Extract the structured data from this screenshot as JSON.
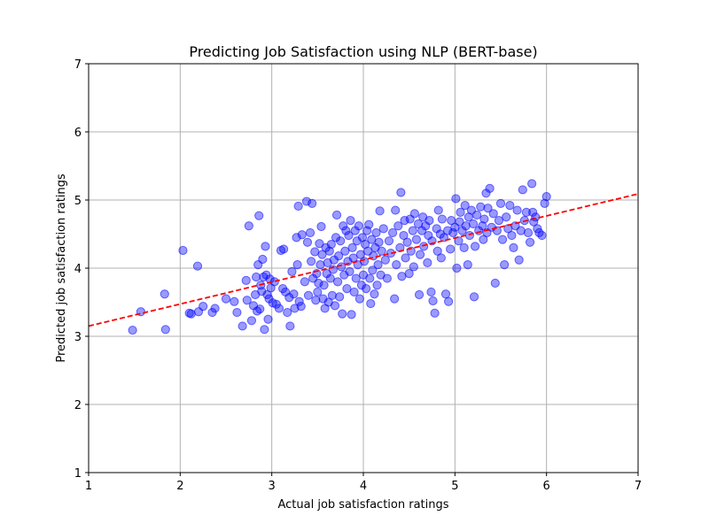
{
  "chart_data": {
    "type": "scatter",
    "title": "Predicting Job Satisfaction using NLP (BERT-base)",
    "xlabel": "Actual job satisfaction ratings",
    "ylabel": "Predicted job satisfaction ratings",
    "xlim": [
      1,
      7
    ],
    "ylim": [
      1,
      7
    ],
    "xticks": [
      "1",
      "2",
      "3",
      "4",
      "5",
      "6",
      "7"
    ],
    "yticks": [
      "1",
      "2",
      "3",
      "4",
      "5",
      "6",
      "7"
    ],
    "grid": true,
    "point_color": "#0000ff",
    "line_color": "#ff0000",
    "fit_line": {
      "style": "dashed",
      "x": [
        1,
        7
      ],
      "y": [
        3.15,
        5.09
      ]
    },
    "points": [
      [
        1.48,
        3.09
      ],
      [
        1.57,
        3.36
      ],
      [
        1.83,
        3.62
      ],
      [
        1.84,
        3.1
      ],
      [
        2.03,
        4.26
      ],
      [
        2.1,
        3.34
      ],
      [
        2.12,
        3.33
      ],
      [
        2.19,
        4.03
      ],
      [
        2.2,
        3.36
      ],
      [
        2.25,
        3.44
      ],
      [
        2.35,
        3.35
      ],
      [
        2.38,
        3.41
      ],
      [
        2.5,
        3.55
      ],
      [
        2.59,
        3.51
      ],
      [
        2.62,
        3.35
      ],
      [
        2.68,
        3.15
      ],
      [
        2.72,
        3.82
      ],
      [
        2.73,
        3.53
      ],
      [
        2.75,
        4.62
      ],
      [
        2.78,
        3.23
      ],
      [
        2.8,
        3.45
      ],
      [
        2.82,
        3.61
      ],
      [
        2.83,
        3.87
      ],
      [
        2.84,
        3.37
      ],
      [
        2.85,
        4.05
      ],
      [
        2.86,
        4.77
      ],
      [
        2.87,
        3.4
      ],
      [
        2.88,
        3.75
      ],
      [
        2.89,
        3.66
      ],
      [
        2.9,
        4.13
      ],
      [
        2.91,
        3.87
      ],
      [
        2.92,
        3.1
      ],
      [
        2.93,
        4.32
      ],
      [
        2.94,
        3.9
      ],
      [
        2.95,
        3.61
      ],
      [
        2.96,
        3.25
      ],
      [
        2.97,
        3.55
      ],
      [
        2.98,
        3.84
      ],
      [
        2.99,
        3.71
      ],
      [
        3.01,
        3.49
      ],
      [
        3.03,
        3.8
      ],
      [
        3.05,
        3.47
      ],
      [
        3.08,
        3.41
      ],
      [
        3.1,
        4.26
      ],
      [
        3.12,
        3.7
      ],
      [
        3.13,
        4.28
      ],
      [
        3.15,
        3.65
      ],
      [
        3.17,
        3.35
      ],
      [
        3.19,
        3.57
      ],
      [
        3.2,
        3.15
      ],
      [
        3.22,
        3.95
      ],
      [
        3.24,
        3.62
      ],
      [
        3.25,
        3.41
      ],
      [
        3.27,
        4.45
      ],
      [
        3.28,
        4.05
      ],
      [
        3.29,
        4.91
      ],
      [
        3.3,
        3.51
      ],
      [
        3.32,
        3.44
      ],
      [
        3.33,
        4.49
      ],
      [
        3.36,
        3.8
      ],
      [
        3.38,
        4.98
      ],
      [
        3.39,
        4.38
      ],
      [
        3.4,
        3.6
      ],
      [
        3.42,
        4.52
      ],
      [
        3.43,
        4.1
      ],
      [
        3.44,
        4.95
      ],
      [
        3.45,
        3.85
      ],
      [
        3.47,
        4.24
      ],
      [
        3.48,
        3.53
      ],
      [
        3.49,
        3.92
      ],
      [
        3.5,
        3.65
      ],
      [
        3.51,
        3.78
      ],
      [
        3.52,
        4.36
      ],
      [
        3.53,
        4.05
      ],
      [
        3.54,
        4.61
      ],
      [
        3.55,
        4.2
      ],
      [
        3.56,
        3.55
      ],
      [
        3.57,
        3.75
      ],
      [
        3.58,
        3.41
      ],
      [
        3.59,
        4.3
      ],
      [
        3.6,
        3.92
      ],
      [
        3.61,
        4.08
      ],
      [
        3.62,
        3.5
      ],
      [
        3.63,
        4.25
      ],
      [
        3.64,
        3.85
      ],
      [
        3.65,
        4.35
      ],
      [
        3.66,
        3.6
      ],
      [
        3.67,
        3.98
      ],
      [
        3.68,
        4.12
      ],
      [
        3.69,
        3.45
      ],
      [
        3.7,
        4.45
      ],
      [
        3.71,
        4.78
      ],
      [
        3.72,
        3.8
      ],
      [
        3.73,
        4.18
      ],
      [
        3.74,
        3.58
      ],
      [
        3.75,
        4.4
      ],
      [
        3.76,
        4.02
      ],
      [
        3.77,
        3.33
      ],
      [
        3.78,
        4.62
      ],
      [
        3.79,
        3.9
      ],
      [
        3.8,
        4.25
      ],
      [
        3.81,
        4.55
      ],
      [
        3.82,
        3.7
      ],
      [
        3.83,
        4.1
      ],
      [
        3.84,
        4.48
      ],
      [
        3.85,
        3.95
      ],
      [
        3.86,
        4.7
      ],
      [
        3.87,
        3.32
      ],
      [
        3.88,
        4.3
      ],
      [
        3.89,
        4.15
      ],
      [
        3.9,
        3.65
      ],
      [
        3.91,
        4.55
      ],
      [
        3.92,
        3.85
      ],
      [
        3.93,
        4.4
      ],
      [
        3.94,
        4.05
      ],
      [
        3.95,
        4.62
      ],
      [
        3.96,
        3.55
      ],
      [
        3.97,
        4.2
      ],
      [
        3.98,
        3.75
      ],
      [
        3.99,
        4.45
      ],
      [
        4.0,
        3.9
      ],
      [
        4.01,
        4.1
      ],
      [
        4.02,
        4.35
      ],
      [
        4.03,
        3.7
      ],
      [
        4.04,
        4.55
      ],
      [
        4.05,
        4.25
      ],
      [
        4.06,
        4.64
      ],
      [
        4.07,
        3.85
      ],
      [
        4.08,
        3.48
      ],
      [
        4.09,
        4.42
      ],
      [
        4.1,
        3.97
      ],
      [
        4.11,
        4.18
      ],
      [
        4.12,
        3.62
      ],
      [
        4.13,
        4.3
      ],
      [
        4.14,
        4.52
      ],
      [
        4.15,
        3.75
      ],
      [
        4.16,
        4.05
      ],
      [
        4.17,
        4.38
      ],
      [
        4.18,
        4.84
      ],
      [
        4.19,
        3.9
      ],
      [
        4.2,
        4.25
      ],
      [
        4.22,
        4.58
      ],
      [
        4.24,
        4.12
      ],
      [
        4.26,
        3.85
      ],
      [
        4.28,
        4.4
      ],
      [
        4.3,
        4.22
      ],
      [
        4.32,
        4.52
      ],
      [
        4.34,
        3.55
      ],
      [
        4.35,
        4.85
      ],
      [
        4.36,
        4.05
      ],
      [
        4.38,
        4.62
      ],
      [
        4.4,
        4.3
      ],
      [
        4.41,
        5.11
      ],
      [
        4.42,
        3.88
      ],
      [
        4.44,
        4.48
      ],
      [
        4.45,
        4.7
      ],
      [
        4.46,
        4.15
      ],
      [
        4.48,
        4.38
      ],
      [
        4.5,
        3.92
      ],
      [
        4.51,
        4.72
      ],
      [
        4.52,
        4.25
      ],
      [
        4.54,
        4.55
      ],
      [
        4.55,
        4.02
      ],
      [
        4.56,
        4.8
      ],
      [
        4.58,
        4.42
      ],
      [
        4.6,
        4.65
      ],
      [
        4.61,
        3.61
      ],
      [
        4.62,
        4.2
      ],
      [
        4.64,
        4.55
      ],
      [
        4.65,
        4.75
      ],
      [
        4.66,
        4.32
      ],
      [
        4.68,
        4.62
      ],
      [
        4.7,
        4.08
      ],
      [
        4.71,
        4.48
      ],
      [
        4.72,
        4.7
      ],
      [
        4.74,
        3.65
      ],
      [
        4.75,
        4.4
      ],
      [
        4.76,
        3.52
      ],
      [
        4.78,
        3.34
      ],
      [
        4.8,
        4.58
      ],
      [
        4.81,
        4.25
      ],
      [
        4.82,
        4.85
      ],
      [
        4.84,
        4.5
      ],
      [
        4.85,
        4.15
      ],
      [
        4.86,
        4.72
      ],
      [
        4.88,
        4.45
      ],
      [
        4.9,
        3.62
      ],
      [
        4.92,
        4.55
      ],
      [
        4.93,
        3.51
      ],
      [
        4.95,
        4.28
      ],
      [
        4.96,
        4.7
      ],
      [
        4.98,
        4.52
      ],
      [
        5.0,
        4.6
      ],
      [
        5.01,
        5.02
      ],
      [
        5.02,
        4.0
      ],
      [
        5.04,
        4.4
      ],
      [
        5.05,
        4.68
      ],
      [
        5.06,
        4.82
      ],
      [
        5.08,
        4.55
      ],
      [
        5.1,
        4.3
      ],
      [
        5.11,
        4.92
      ],
      [
        5.12,
        4.62
      ],
      [
        5.14,
        4.05
      ],
      [
        5.15,
        4.75
      ],
      [
        5.16,
        4.48
      ],
      [
        5.18,
        4.85
      ],
      [
        5.2,
        4.65
      ],
      [
        5.21,
        3.58
      ],
      [
        5.22,
        4.32
      ],
      [
        5.24,
        4.78
      ],
      [
        5.26,
        4.55
      ],
      [
        5.28,
        4.9
      ],
      [
        5.3,
        4.62
      ],
      [
        5.31,
        4.42
      ],
      [
        5.32,
        4.72
      ],
      [
        5.34,
        5.1
      ],
      [
        5.35,
        4.52
      ],
      [
        5.36,
        4.88
      ],
      [
        5.38,
        5.17
      ],
      [
        5.4,
        4.6
      ],
      [
        5.42,
        4.8
      ],
      [
        5.44,
        3.78
      ],
      [
        5.46,
        4.55
      ],
      [
        5.48,
        4.7
      ],
      [
        5.5,
        4.95
      ],
      [
        5.52,
        4.42
      ],
      [
        5.54,
        4.05
      ],
      [
        5.56,
        4.75
      ],
      [
        5.58,
        4.58
      ],
      [
        5.6,
        4.92
      ],
      [
        5.62,
        4.48
      ],
      [
        5.64,
        4.3
      ],
      [
        5.66,
        4.62
      ],
      [
        5.68,
        4.85
      ],
      [
        5.7,
        4.12
      ],
      [
        5.72,
        4.55
      ],
      [
        5.74,
        5.15
      ],
      [
        5.76,
        4.7
      ],
      [
        5.78,
        4.82
      ],
      [
        5.8,
        4.52
      ],
      [
        5.82,
        4.38
      ],
      [
        5.84,
        5.24
      ],
      [
        5.85,
        4.82
      ],
      [
        5.86,
        4.68
      ],
      [
        5.88,
        4.75
      ],
      [
        5.9,
        4.58
      ],
      [
        5.92,
        4.52
      ],
      [
        5.95,
        4.48
      ],
      [
        5.98,
        4.95
      ],
      [
        6.0,
        5.05
      ]
    ]
  }
}
